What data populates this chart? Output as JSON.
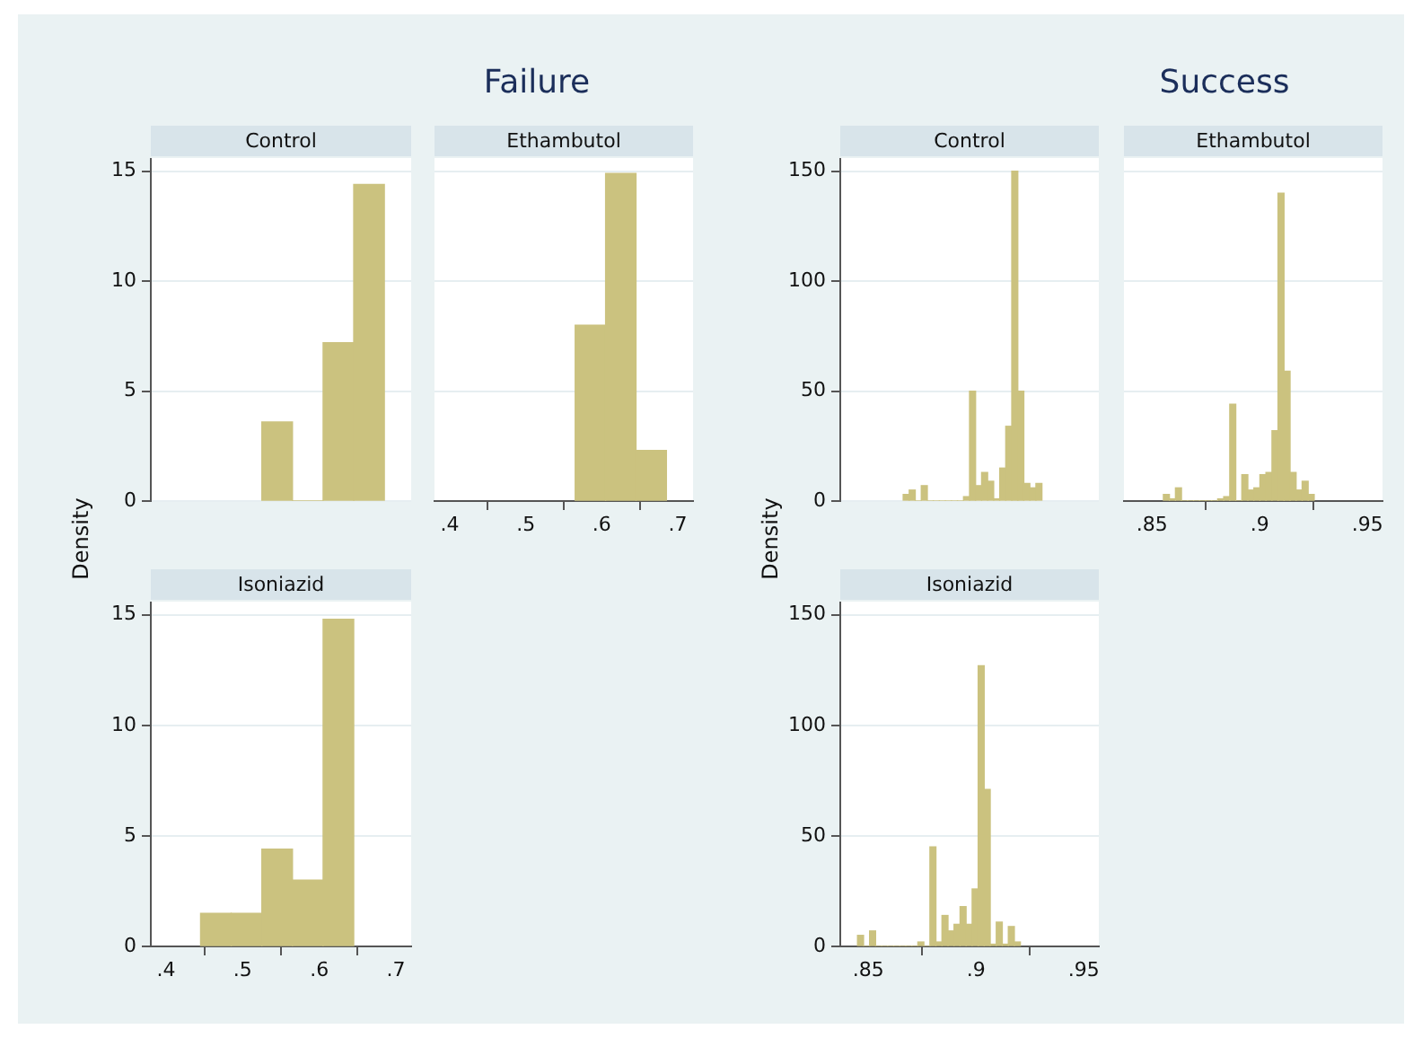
{
  "chart_data": [
    {
      "type": "histogram",
      "title": "Control",
      "annotations": [
        "Failure"
      ],
      "bins": [
        0.525,
        0.565,
        0.605,
        0.645,
        0.685
      ],
      "values": [
        3.6,
        0,
        7.2,
        14.4
      ],
      "color": "#cbc27f",
      "xlim": [
        0.38,
        0.72
      ],
      "ylim": [
        0,
        15.6
      ],
      "yticks": [
        0,
        5,
        10,
        15
      ],
      "grid": "y",
      "tick_labels": "y"
    },
    {
      "type": "histogram",
      "title": "Ethambutol",
      "bins": [
        0.565,
        0.605,
        0.645,
        0.685
      ],
      "values": [
        8,
        14.9,
        2.3
      ],
      "color": "#cbc27f",
      "xlim": [
        0.38,
        0.72
      ],
      "xticks": [
        {
          "value": 0.4,
          "label": ".4"
        },
        {
          "value": 0.5,
          "label": ".5"
        },
        {
          "value": 0.6,
          "label": ".6"
        },
        {
          "value": 0.7,
          "label": ".7"
        }
      ],
      "ylim": [
        0,
        15.6
      ],
      "yticks": [
        {
          "value": 0,
          "label": null
        },
        {
          "value": 5,
          "label": null
        },
        {
          "value": 10,
          "label": null
        },
        {
          "value": 15,
          "label": null
        }
      ],
      "grid": "y",
      "tick_labels": "x"
    },
    {
      "type": "histogram",
      "title": "Isoniazid",
      "ylabel": "Density",
      "bins": [
        0.445,
        0.485,
        0.525,
        0.565,
        0.605,
        0.645
      ],
      "values": [
        1.5,
        1.5,
        4.4,
        3,
        14.8
      ],
      "color": "#cbc27f",
      "xlim": [
        0.38,
        0.72
      ],
      "xticks": [
        {
          "value": 0.4,
          "label": ".4"
        },
        {
          "value": 0.5,
          "label": ".5"
        },
        {
          "value": 0.6,
          "label": ".6"
        },
        {
          "value": 0.7,
          "label": ".7"
        }
      ],
      "ylim": [
        0,
        15.6
      ],
      "yticks": [
        0,
        5,
        10,
        15
      ],
      "grid": "y"
    },
    {
      "type": "histogram",
      "title": "Control",
      "annotations": [
        "Success"
      ],
      "bins": [
        0.8662,
        0.869,
        0.8718,
        0.8746,
        0.8774,
        0.8802,
        0.883,
        0.8858,
        0.8886,
        0.8914,
        0.8942,
        0.897,
        0.8998,
        0.9026,
        0.9054,
        0.9082,
        0.911,
        0.9138,
        0.9166,
        0.9194,
        0.9222,
        0.925,
        0.9278,
        0.9306
      ],
      "values": [
        3,
        5,
        0,
        7,
        0,
        0,
        0,
        0,
        0,
        0,
        2,
        50,
        7,
        13,
        9,
        1,
        15,
        34,
        150,
        50,
        8,
        6,
        8
      ],
      "color": "#cbc27f",
      "xlim": [
        0.837,
        0.957
      ],
      "ylim": [
        0,
        156
      ],
      "yticks": [
        0,
        50,
        100,
        150
      ],
      "grid": "y",
      "tick_labels": "y"
    },
    {
      "type": "histogram",
      "title": "Ethambutol",
      "bins": [
        0.8553,
        0.8581,
        0.8609,
        0.8637,
        0.8665,
        0.8693,
        0.8721,
        0.8749,
        0.8777,
        0.8805,
        0.8833,
        0.8861,
        0.8889,
        0.8917,
        0.8945,
        0.8973,
        0.9001,
        0.9029,
        0.9057,
        0.9085,
        0.9113,
        0.9141,
        0.9169,
        0.9197,
        0.9225,
        0.9253
      ],
      "values": [
        3,
        1,
        6,
        0,
        0,
        0,
        0,
        0,
        0,
        1,
        2,
        44,
        0,
        12,
        5,
        6,
        12,
        13,
        32,
        140,
        59,
        13,
        5,
        9,
        3
      ],
      "color": "#cbc27f",
      "xlim": [
        0.837,
        0.957
      ],
      "xticks": [
        {
          "value": 0.85,
          "label": ".85"
        },
        {
          "value": 0.9,
          "label": ".9"
        },
        {
          "value": 0.95,
          "label": ".95"
        }
      ],
      "ylim": [
        0,
        156
      ],
      "yticks": [
        {
          "value": 0,
          "label": null
        },
        {
          "value": 50,
          "label": null
        },
        {
          "value": 100,
          "label": null
        },
        {
          "value": 150,
          "label": null
        }
      ],
      "grid": "y",
      "tick_labels": "x"
    },
    {
      "type": "histogram",
      "title": "Isoniazid",
      "ylabel": "Density",
      "bins": [
        0.845,
        0.8478,
        0.8506,
        0.8534,
        0.8562,
        0.859,
        0.8618,
        0.8646,
        0.8674,
        0.8702,
        0.873,
        0.8758,
        0.8786,
        0.8814,
        0.8842,
        0.887,
        0.8898,
        0.8926,
        0.8954,
        0.8982,
        0.901,
        0.9038,
        0.9066,
        0.9094,
        0.9122,
        0.915,
        0.9178,
        0.9206
      ],
      "values": [
        5,
        0,
        7,
        0,
        0,
        0,
        0,
        0,
        0,
        0,
        2,
        0,
        45,
        2,
        14,
        7,
        10,
        18,
        10,
        26,
        127,
        71,
        1,
        11,
        1,
        9,
        2
      ],
      "color": "#cbc27f",
      "xlim": [
        0.837,
        0.957
      ],
      "xticks": [
        {
          "value": 0.85,
          "label": ".85"
        },
        {
          "value": 0.9,
          "label": ".9"
        },
        {
          "value": 0.95,
          "label": ".95"
        }
      ],
      "ylim": [
        0,
        156
      ],
      "yticks": [
        0,
        50,
        100,
        150
      ],
      "grid": "y"
    }
  ]
}
